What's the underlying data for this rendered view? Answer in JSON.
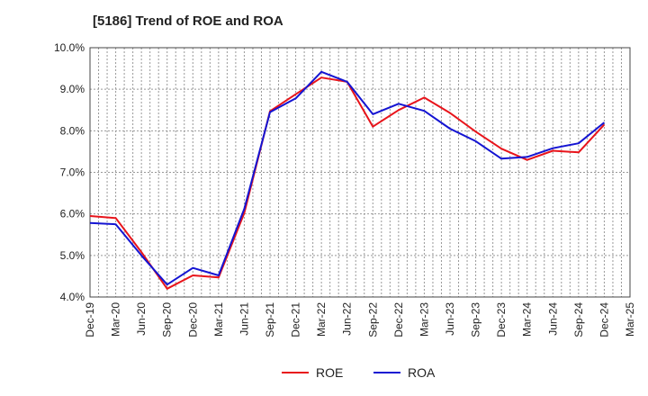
{
  "chart_data": {
    "type": "line",
    "title": "[5186]  Trend of ROE and ROA",
    "xlabel": "",
    "ylabel": "",
    "x_ticks": [
      "Dec-19",
      "Mar-20",
      "Jun-20",
      "Sep-20",
      "Dec-20",
      "Mar-21",
      "Jun-21",
      "Sep-21",
      "Dec-21",
      "Mar-22",
      "Jun-22",
      "Sep-22",
      "Dec-22",
      "Mar-23",
      "Jun-23",
      "Sep-23",
      "Dec-23",
      "Mar-24",
      "Jun-24",
      "Sep-24",
      "Dec-24",
      "Mar-25"
    ],
    "y_ticks": [
      "4.0%",
      "5.0%",
      "6.0%",
      "7.0%",
      "8.0%",
      "9.0%",
      "10.0%"
    ],
    "ylim": [
      4.0,
      10.0
    ],
    "grid": true,
    "legend_position": "bottom",
    "series": [
      {
        "name": "ROE",
        "color": "#e8141b",
        "x": [
          "Dec-19",
          "Mar-20",
          "Jun-20",
          "Sep-20",
          "Dec-20",
          "Mar-21",
          "Jun-21",
          "Sep-21",
          "Dec-21",
          "Mar-22",
          "Jun-22",
          "Sep-22",
          "Dec-22",
          "Mar-23",
          "Jun-23",
          "Sep-23",
          "Dec-23",
          "Mar-24",
          "Jun-24",
          "Sep-24",
          "Dec-24"
        ],
        "values": [
          5.95,
          5.9,
          5.08,
          4.2,
          4.52,
          4.47,
          6.02,
          8.47,
          8.88,
          9.28,
          9.18,
          8.1,
          8.5,
          8.8,
          8.43,
          7.98,
          7.57,
          7.3,
          7.52,
          7.48,
          8.15
        ]
      },
      {
        "name": "ROA",
        "color": "#1414d2",
        "x": [
          "Dec-19",
          "Mar-20",
          "Jun-20",
          "Sep-20",
          "Dec-20",
          "Mar-21",
          "Jun-21",
          "Sep-21",
          "Dec-21",
          "Mar-22",
          "Jun-22",
          "Sep-22",
          "Dec-22",
          "Mar-23",
          "Jun-23",
          "Sep-23",
          "Dec-23",
          "Mar-24",
          "Jun-24",
          "Sep-24",
          "Dec-24"
        ],
        "values": [
          5.78,
          5.75,
          5.0,
          4.3,
          4.7,
          4.52,
          6.12,
          8.45,
          8.78,
          9.42,
          9.18,
          8.4,
          8.65,
          8.48,
          8.05,
          7.75,
          7.33,
          7.37,
          7.58,
          7.7,
          8.2
        ]
      }
    ]
  }
}
